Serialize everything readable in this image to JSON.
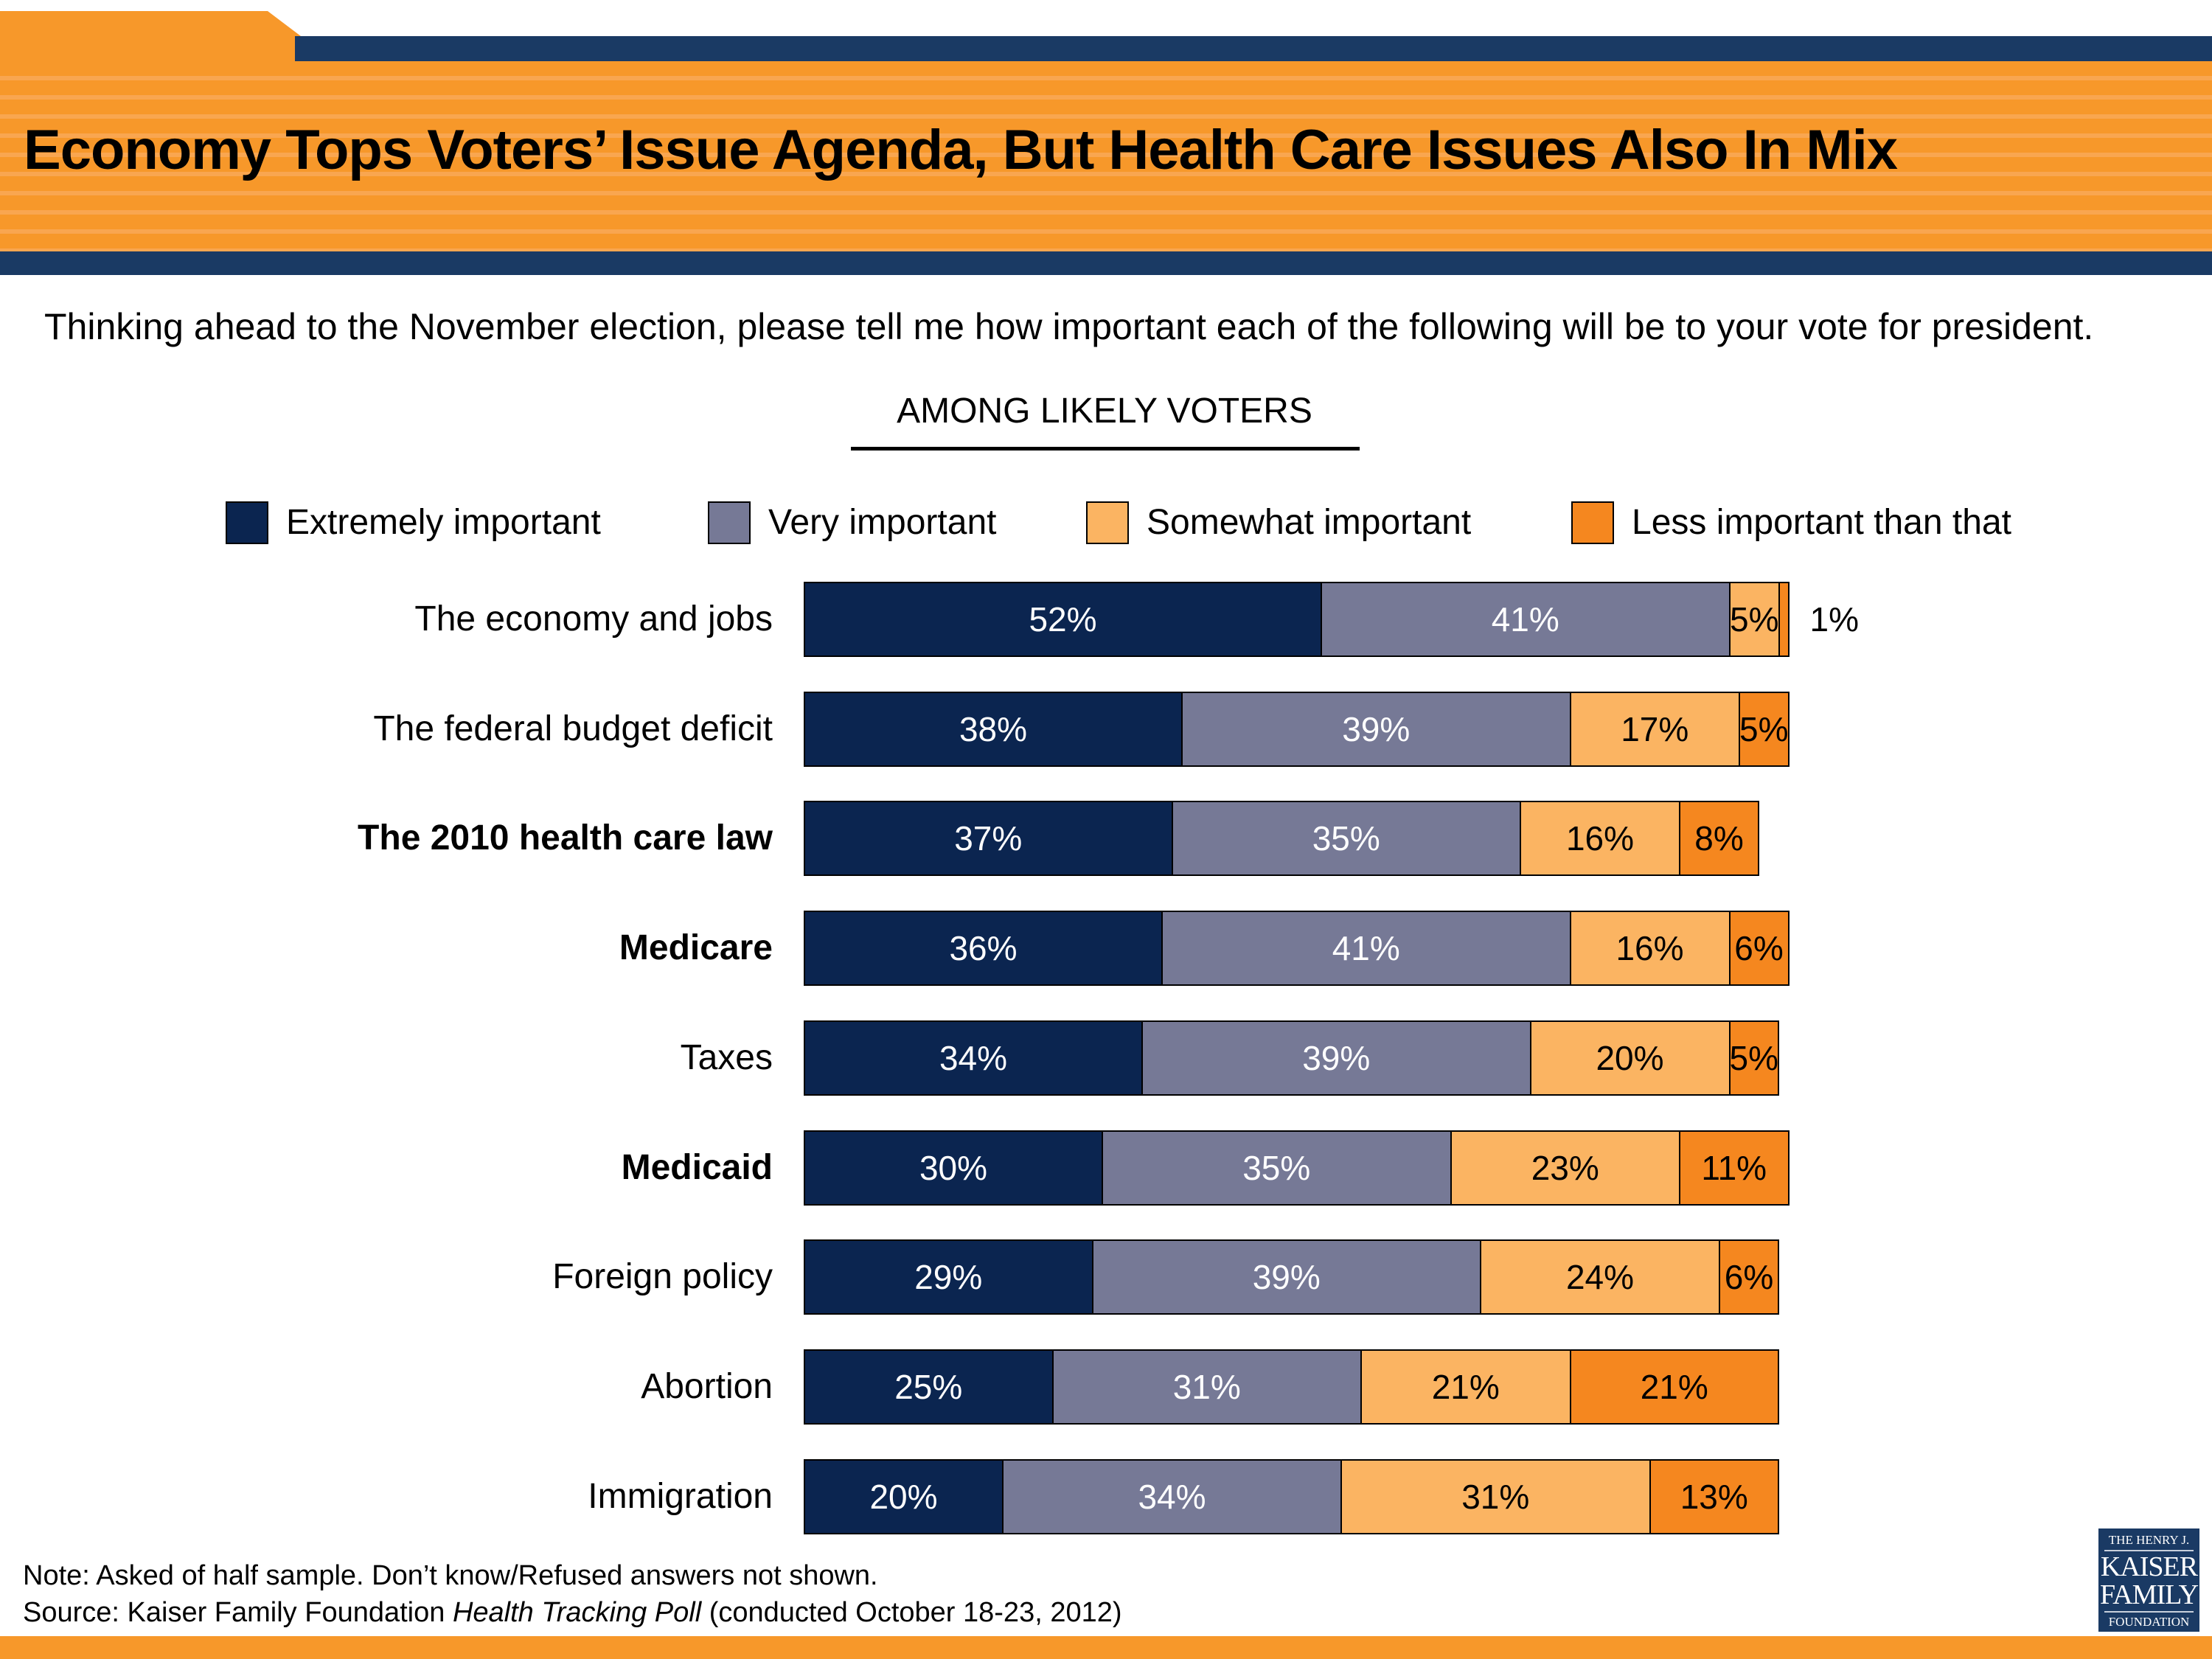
{
  "title": "Economy Tops Voters’ Issue Agenda, But Health Care Issues Also In Mix",
  "question": "Thinking ahead to the November election, please tell me how important each of the following will be to your vote for president.",
  "group_label": "AMONG LIKELY VOTERS",
  "notes": {
    "note": "Note: Asked of half sample. Don’t know/Refused answers not shown.",
    "source_prefix": "Source: Kaiser Family Foundation ",
    "source_italic": "Health Tracking Poll",
    "source_suffix": " (conducted October 18-23, 2012)"
  },
  "logo": {
    "line1": "THE HENRY J.",
    "line2": "KAISER",
    "line3": "FAMILY",
    "line4": "FOUNDATION"
  },
  "colors": {
    "header_orange": "#f7982a",
    "header_navy": "#1a3a64"
  },
  "chart_data": {
    "type": "bar",
    "orientation": "horizontal",
    "stacked": true,
    "unit": "%",
    "xlim": [
      0,
      100
    ],
    "grid": false,
    "legend_position": "top",
    "categories": [
      "The economy and jobs",
      "The federal budget deficit",
      "The 2010 health care law",
      "Medicare",
      "Taxes",
      "Medicaid",
      "Foreign policy",
      "Abortion",
      "Immigration"
    ],
    "bold_categories": [
      "The 2010 health care law",
      "Medicare",
      "Medicaid"
    ],
    "series": [
      {
        "name": "Extremely important",
        "color": "#0b2550",
        "label_color": "#ffffff",
        "values": [
          52,
          38,
          37,
          36,
          34,
          30,
          29,
          25,
          20
        ]
      },
      {
        "name": "Very important",
        "color": "#767996",
        "label_color": "#ffffff",
        "values": [
          41,
          39,
          35,
          41,
          39,
          35,
          39,
          31,
          34
        ]
      },
      {
        "name": "Somewhat important",
        "color": "#fbb462",
        "label_color": "#000000",
        "values": [
          5,
          17,
          16,
          16,
          20,
          23,
          24,
          21,
          31
        ]
      },
      {
        "name": "Less important than that",
        "color": "#f5871f",
        "label_color": "#000000",
        "values": [
          1,
          5,
          8,
          6,
          5,
          11,
          6,
          21,
          13
        ]
      }
    ]
  }
}
